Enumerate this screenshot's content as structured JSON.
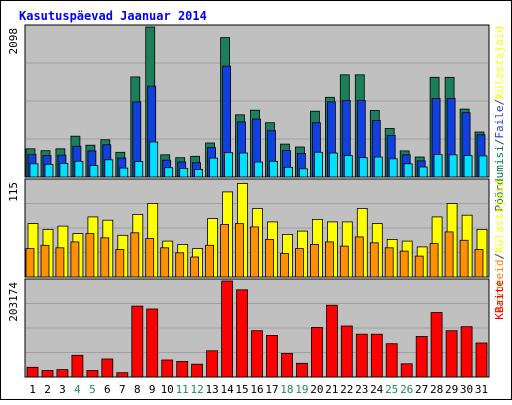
{
  "title": "Kasutuspäevad Jaanuar 2014",
  "colors": {
    "background": "#ffffff",
    "panel": "#c0c0c0",
    "panel_border": "#000000",
    "title": "#0000ff",
    "weekday_tick": "#000000",
    "weekend_tick": "#228b57",
    "grid": "#a0a0a0"
  },
  "chart_data": [
    {
      "type": "bar",
      "categories": [
        "1",
        "2",
        "3",
        "4",
        "5",
        "6",
        "7",
        "8",
        "9",
        "10",
        "11",
        "12",
        "13",
        "14",
        "15",
        "16",
        "17",
        "18",
        "19",
        "20",
        "21",
        "22",
        "23",
        "24",
        "25",
        "26",
        "27",
        "28",
        "29",
        "30",
        "31"
      ],
      "weekend_categories": [
        "4",
        "5",
        "11",
        "12",
        "18",
        "19",
        "25",
        "26"
      ],
      "ytick": "2098",
      "ylim": [
        0,
        2098
      ],
      "grid": true,
      "legend_position": "right-vertical",
      "legend": [
        {
          "label": "Pöördumisi",
          "color": "#008040"
        },
        {
          "label": "/",
          "color": "#404040"
        },
        {
          "label": "Faile",
          "color": "#2040e0"
        },
        {
          "label": "/",
          "color": "#404040"
        },
        {
          "label": "Külastajaid",
          "color": "#ffff00"
        }
      ],
      "series": [
        {
          "name": "Pöördumisi",
          "color": "#1a7f5a",
          "values": [
            395,
            368,
            395,
            570,
            445,
            520,
            345,
            1400,
            2098,
            310,
            270,
            290,
            475,
            1950,
            870,
            935,
            760,
            460,
            420,
            920,
            1115,
            1430,
            1430,
            930,
            680,
            365,
            280,
            1395,
            1395,
            950,
            630
          ]
        },
        {
          "name": "Faile",
          "color": "#1040e0",
          "values": [
            315,
            300,
            305,
            430,
            365,
            450,
            265,
            1050,
            1270,
            235,
            210,
            200,
            410,
            1550,
            770,
            810,
            650,
            370,
            330,
            760,
            1050,
            1070,
            1070,
            790,
            580,
            310,
            225,
            1100,
            1100,
            900,
            590
          ]
        },
        {
          "name": "Külastajaid",
          "color": "#00e0ff",
          "values": [
            185,
            175,
            190,
            220,
            160,
            240,
            125,
            215,
            490,
            130,
            120,
            105,
            265,
            340,
            335,
            210,
            220,
            135,
            115,
            345,
            335,
            300,
            270,
            280,
            255,
            185,
            140,
            315,
            310,
            300,
            295
          ]
        }
      ]
    },
    {
      "type": "bar",
      "categories": [
        "1",
        "2",
        "3",
        "4",
        "5",
        "6",
        "7",
        "8",
        "9",
        "10",
        "11",
        "12",
        "13",
        "14",
        "15",
        "16",
        "17",
        "18",
        "19",
        "20",
        "21",
        "22",
        "23",
        "24",
        "25",
        "26",
        "27",
        "28",
        "29",
        "30",
        "31"
      ],
      "ytick": "115",
      "ylim": [
        0,
        115
      ],
      "grid": true,
      "legend_position": "right-vertical",
      "legend": [
        {
          "label": "Arvuteid",
          "color": "#ff8000"
        },
        {
          "label": "/",
          "color": "#404040"
        },
        {
          "label": "Külastajaid",
          "color": "#ffff00"
        }
      ],
      "series": [
        {
          "name": "Külastajaid",
          "color": "#ffff00",
          "values": [
            64,
            57,
            61,
            52,
            72,
            68,
            50,
            75,
            88,
            43,
            39,
            34,
            70,
            102,
            112,
            82,
            66,
            51,
            55,
            69,
            66,
            66,
            82,
            64,
            45,
            43,
            36,
            72,
            88,
            74,
            57
          ]
        },
        {
          "name": "Arvuteid",
          "color": "#ff9000",
          "values": [
            34,
            38,
            35,
            42,
            52,
            47,
            33,
            53,
            46,
            35,
            29,
            24,
            38,
            63,
            64,
            60,
            45,
            28,
            34,
            39,
            42,
            37,
            48,
            41,
            35,
            31,
            25,
            40,
            54,
            44,
            33
          ]
        }
      ]
    },
    {
      "type": "bar",
      "categories": [
        "1",
        "2",
        "3",
        "4",
        "5",
        "6",
        "7",
        "8",
        "9",
        "10",
        "11",
        "12",
        "13",
        "14",
        "15",
        "16",
        "17",
        "18",
        "19",
        "20",
        "21",
        "22",
        "23",
        "24",
        "25",
        "26",
        "27",
        "28",
        "29",
        "30",
        "31"
      ],
      "ytick": "203174",
      "ylim": [
        0,
        203174
      ],
      "grid": true,
      "legend_position": "right-vertical",
      "legend": [
        {
          "label": "KBaite",
          "color": "#ff0000"
        }
      ],
      "series": [
        {
          "name": "KBaite",
          "color": "#ff0000",
          "values": [
            20500,
            13800,
            15600,
            46000,
            13800,
            38000,
            9200,
            150000,
            144000,
            36000,
            33000,
            27000,
            55500,
            203174,
            184500,
            98000,
            88000,
            50000,
            29000,
            105000,
            152000,
            108000,
            90500,
            90500,
            70500,
            28000,
            86000,
            136500,
            98000,
            106500,
            72000
          ]
        }
      ]
    }
  ]
}
